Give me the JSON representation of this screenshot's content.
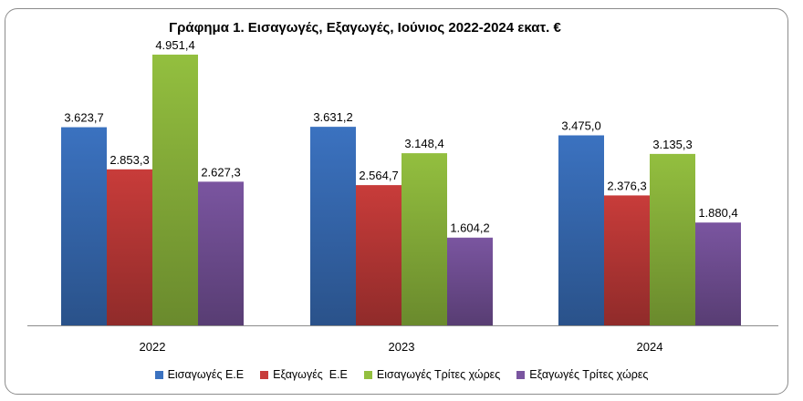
{
  "chart_data": {
    "type": "bar",
    "title": "Γράφημα 1. Εισαγωγές, Εξαγωγές, Ιούνιος 2022-2024 εκατ. €",
    "categories": [
      "2022",
      "2023",
      "2024"
    ],
    "series": [
      {
        "name": "Εισαγωγές Ε.Ε",
        "color": "#3b72c0",
        "values": [
          3623.7,
          3631.2,
          3475.0
        ],
        "labels": [
          "3.623,7",
          "3.631,2",
          "3.475,0"
        ]
      },
      {
        "name": "Εξαγωγές  Ε.Ε",
        "color": "#c83c3a",
        "values": [
          2853.3,
          2564.7,
          2376.3
        ],
        "labels": [
          "2.853,3",
          "2.564,7",
          "2.376,3"
        ]
      },
      {
        "name": "Εισαγωγές Τρίτες χώρες",
        "color": "#93bf3f",
        "values": [
          4951.4,
          3148.4,
          3135.3
        ],
        "labels": [
          "4.951,4",
          "3.148,4",
          "3.135,3"
        ]
      },
      {
        "name": "Εξαγωγές Τρίτες χώρες",
        "color": "#7a55a0",
        "values": [
          2627.3,
          1604.2,
          1880.4
        ],
        "labels": [
          "2.627,3",
          "1.604,2",
          "1.880,4"
        ]
      }
    ],
    "ylim": [
      0,
      5000
    ],
    "grid": false,
    "legend_position": "bottom"
  }
}
